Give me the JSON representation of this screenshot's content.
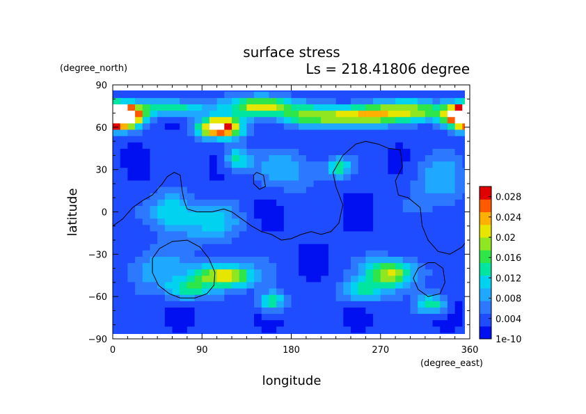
{
  "chart_data": {
    "type": "heatmap",
    "title": "surface stress",
    "subtitle": "Ls = 218.41806 degree",
    "xlabel": "longitude",
    "ylabel": "latitude",
    "x_units": "(degree_east)",
    "y_units": "(degree_north)",
    "xlim": [
      0,
      360
    ],
    "ylim": [
      -90,
      90
    ],
    "x_ticks": [
      "0",
      "90",
      "180",
      "270",
      "360"
    ],
    "y_ticks": [
      "90",
      "60",
      "30",
      "0",
      "−30",
      "−60",
      "−90"
    ],
    "colorbar": {
      "min": 0,
      "max": 0.03,
      "labels": [
        "0.028",
        "0.024",
        "0.02",
        "0.016",
        "0.012",
        "0.008",
        "0.004",
        "1e-10"
      ],
      "label_values": [
        0.028,
        0.024,
        0.02,
        0.016,
        0.012,
        0.008,
        0.004,
        0
      ],
      "colormap": [
        "#0010f0",
        "#1f4cff",
        "#2c78ff",
        "#1ea8ff",
        "#00d2f0",
        "#00e6a0",
        "#2ee64a",
        "#90e620",
        "#e6e600",
        "#ffb000",
        "#ff5a00",
        "#e00000"
      ]
    },
    "field_blobs": [
      {
        "lon": 10,
        "lat": 68,
        "value": 0.034,
        "sx": 14,
        "sy": 5
      },
      {
        "lon": 355,
        "lat": 68,
        "value": 0.034,
        "sx": 14,
        "sy": 6
      },
      {
        "lon": 108,
        "lat": 60,
        "value": 0.03,
        "sx": 15,
        "sy": 5
      },
      {
        "lon": 150,
        "lat": 75,
        "value": 0.02,
        "sx": 22,
        "sy": 5
      },
      {
        "lon": 245,
        "lat": 68,
        "value": 0.019,
        "sx": 25,
        "sy": 5
      },
      {
        "lon": 300,
        "lat": 72,
        "value": 0.016,
        "sx": 30,
        "sy": 5
      },
      {
        "lon": 60,
        "lat": 74,
        "value": 0.012,
        "sx": 25,
        "sy": 4
      },
      {
        "lon": 195,
        "lat": 68,
        "value": 0.011,
        "sx": 20,
        "sy": 5
      },
      {
        "lon": 125,
        "lat": 38,
        "value": 0.011,
        "sx": 9,
        "sy": 6
      },
      {
        "lon": 228,
        "lat": 32,
        "value": 0.01,
        "sx": 8,
        "sy": 5
      },
      {
        "lon": 60,
        "lat": 0,
        "value": 0.01,
        "sx": 15,
        "sy": 10
      },
      {
        "lon": 100,
        "lat": -8,
        "value": 0.008,
        "sx": 20,
        "sy": 10
      },
      {
        "lon": 112,
        "lat": -45,
        "value": 0.02,
        "sx": 22,
        "sy": 6
      },
      {
        "lon": 75,
        "lat": -55,
        "value": 0.011,
        "sx": 15,
        "sy": 5
      },
      {
        "lon": 160,
        "lat": -63,
        "value": 0.014,
        "sx": 9,
        "sy": 5
      },
      {
        "lon": 280,
        "lat": -43,
        "value": 0.018,
        "sx": 18,
        "sy": 7
      },
      {
        "lon": 252,
        "lat": -56,
        "value": 0.01,
        "sx": 16,
        "sy": 6
      },
      {
        "lon": 322,
        "lat": -65,
        "value": 0.012,
        "sx": 10,
        "sy": 5
      },
      {
        "lon": 180,
        "lat": 30,
        "value": 0.006,
        "sx": 25,
        "sy": 10
      },
      {
        "lon": 40,
        "lat": -40,
        "value": 0.007,
        "sx": 20,
        "sy": 10
      },
      {
        "lon": 330,
        "lat": 20,
        "value": 0.006,
        "sx": 20,
        "sy": 15
      }
    ],
    "topo_contours": [
      {
        "name": "dichotomy-boundary",
        "points": [
          [
            0,
            -10
          ],
          [
            10,
            -5
          ],
          [
            20,
            3
          ],
          [
            30,
            8
          ],
          [
            40,
            12
          ],
          [
            50,
            20
          ],
          [
            55,
            25
          ],
          [
            62,
            28
          ],
          [
            68,
            26
          ],
          [
            70,
            15
          ],
          [
            72,
            8
          ],
          [
            75,
            2
          ],
          [
            85,
            0
          ],
          [
            100,
            0
          ],
          [
            112,
            2
          ],
          [
            120,
            0
          ],
          [
            130,
            -5
          ],
          [
            140,
            -10
          ],
          [
            150,
            -14
          ],
          [
            160,
            -16
          ],
          [
            170,
            -20
          ],
          [
            180,
            -19
          ],
          [
            190,
            -16
          ],
          [
            200,
            -14
          ],
          [
            210,
            -16
          ],
          [
            220,
            -14
          ],
          [
            228,
            -8
          ],
          [
            232,
            5
          ],
          [
            225,
            18
          ],
          [
            222,
            28
          ],
          [
            232,
            40
          ],
          [
            245,
            48
          ],
          [
            255,
            50
          ],
          [
            268,
            48
          ],
          [
            278,
            45
          ],
          [
            290,
            44
          ],
          [
            292,
            32
          ],
          [
            285,
            22
          ],
          [
            288,
            12
          ],
          [
            298,
            10
          ],
          [
            310,
            3
          ],
          [
            312,
            -10
          ],
          [
            318,
            -20
          ],
          [
            328,
            -28
          ],
          [
            340,
            -30
          ],
          [
            352,
            -25
          ],
          [
            360,
            -18
          ]
        ]
      },
      {
        "name": "hellas-basin",
        "points": [
          [
            75,
            -20
          ],
          [
            88,
            -25
          ],
          [
            97,
            -33
          ],
          [
            103,
            -43
          ],
          [
            102,
            -52
          ],
          [
            95,
            -58
          ],
          [
            83,
            -61
          ],
          [
            68,
            -61
          ],
          [
            57,
            -58
          ],
          [
            46,
            -52
          ],
          [
            40,
            -43
          ],
          [
            40,
            -33
          ],
          [
            47,
            -26
          ],
          [
            60,
            -21
          ],
          [
            75,
            -20
          ]
        ]
      },
      {
        "name": "argyre-basin",
        "points": [
          [
            325,
            -36
          ],
          [
            333,
            -40
          ],
          [
            335,
            -50
          ],
          [
            330,
            -58
          ],
          [
            318,
            -60
          ],
          [
            308,
            -55
          ],
          [
            303,
            -47
          ],
          [
            308,
            -40
          ],
          [
            318,
            -36
          ],
          [
            325,
            -36
          ]
        ]
      },
      {
        "name": "elysium-rise",
        "points": [
          [
            145,
            28
          ],
          [
            152,
            26
          ],
          [
            154,
            18
          ],
          [
            148,
            16
          ],
          [
            142,
            20
          ],
          [
            142,
            26
          ],
          [
            145,
            28
          ]
        ]
      }
    ]
  }
}
